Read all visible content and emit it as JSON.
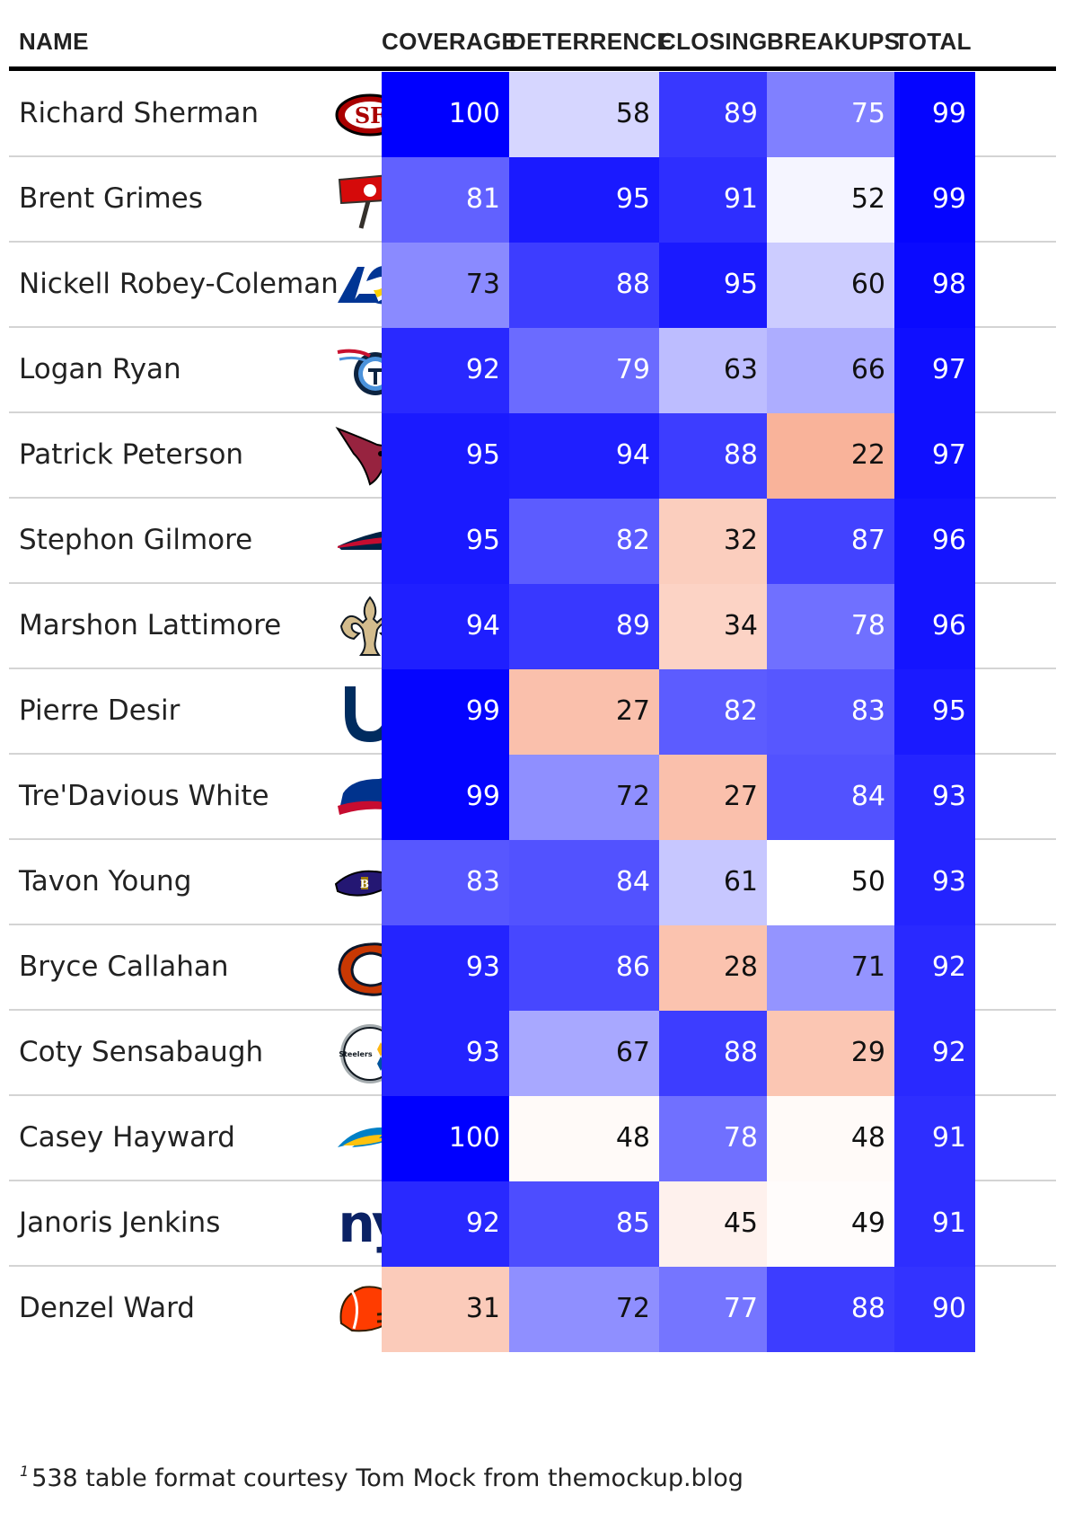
{
  "columns": {
    "name": "NAME",
    "coverage": "COVERAGE",
    "deterrence": "DETERRENCE",
    "closing": "CLOSING",
    "breakups": "BREAKUPS",
    "total": "TOTAL"
  },
  "rows": [
    {
      "name": "Richard Sherman",
      "team_logo": "49ers-logo",
      "coverage": 100,
      "deterrence": 58,
      "closing": 89,
      "breakups": 75,
      "total": 99
    },
    {
      "name": "Brent Grimes",
      "team_logo": "buccaneers-logo",
      "coverage": 81,
      "deterrence": 95,
      "closing": 91,
      "breakups": 52,
      "total": 99
    },
    {
      "name": "Nickell Robey-Coleman",
      "team_logo": "rams-logo",
      "coverage": 73,
      "deterrence": 88,
      "closing": 95,
      "breakups": 60,
      "total": 98
    },
    {
      "name": "Logan Ryan",
      "team_logo": "titans-logo",
      "coverage": 92,
      "deterrence": 79,
      "closing": 63,
      "breakups": 66,
      "total": 97
    },
    {
      "name": "Patrick Peterson",
      "team_logo": "cardinals-logo",
      "coverage": 95,
      "deterrence": 94,
      "closing": 88,
      "breakups": 22,
      "total": 97
    },
    {
      "name": "Stephon Gilmore",
      "team_logo": "patriots-logo",
      "coverage": 95,
      "deterrence": 82,
      "closing": 32,
      "breakups": 87,
      "total": 96
    },
    {
      "name": "Marshon Lattimore",
      "team_logo": "saints-logo",
      "coverage": 94,
      "deterrence": 89,
      "closing": 34,
      "breakups": 78,
      "total": 96
    },
    {
      "name": "Pierre Desir",
      "team_logo": "colts-logo",
      "coverage": 99,
      "deterrence": 27,
      "closing": 82,
      "breakups": 83,
      "total": 95
    },
    {
      "name": "Tre'Davious White",
      "team_logo": "bills-logo",
      "coverage": 99,
      "deterrence": 72,
      "closing": 27,
      "breakups": 84,
      "total": 93
    },
    {
      "name": "Tavon Young",
      "team_logo": "ravens-logo",
      "coverage": 83,
      "deterrence": 84,
      "closing": 61,
      "breakups": 50,
      "total": 93
    },
    {
      "name": "Bryce Callahan",
      "team_logo": "bears-logo",
      "coverage": 93,
      "deterrence": 86,
      "closing": 28,
      "breakups": 71,
      "total": 92
    },
    {
      "name": "Coty Sensabaugh",
      "team_logo": "steelers-logo",
      "logo_text": "Steelers",
      "coverage": 93,
      "deterrence": 67,
      "closing": 88,
      "breakups": 29,
      "total": 92
    },
    {
      "name": "Casey Hayward",
      "team_logo": "chargers-logo",
      "coverage": 100,
      "deterrence": 48,
      "closing": 78,
      "breakups": 48,
      "total": 91
    },
    {
      "name": "Janoris Jenkins",
      "team_logo": "giants-logo",
      "logo_text": "ny",
      "coverage": 92,
      "deterrence": 85,
      "closing": 45,
      "breakups": 49,
      "total": 91
    },
    {
      "name": "Denzel Ward",
      "team_logo": "browns-logo",
      "coverage": 31,
      "deterrence": 72,
      "closing": 77,
      "breakups": 88,
      "total": 90
    }
  ],
  "color_scale": {
    "low": "#f5774a",
    "mid": "#ffffff",
    "high": "#0000ff",
    "low_value": 0,
    "mid_value": 50,
    "high_value": 100
  },
  "footer": {
    "marker": "1",
    "text": "538 table format courtesy Tom Mock from themockup.blog"
  }
}
